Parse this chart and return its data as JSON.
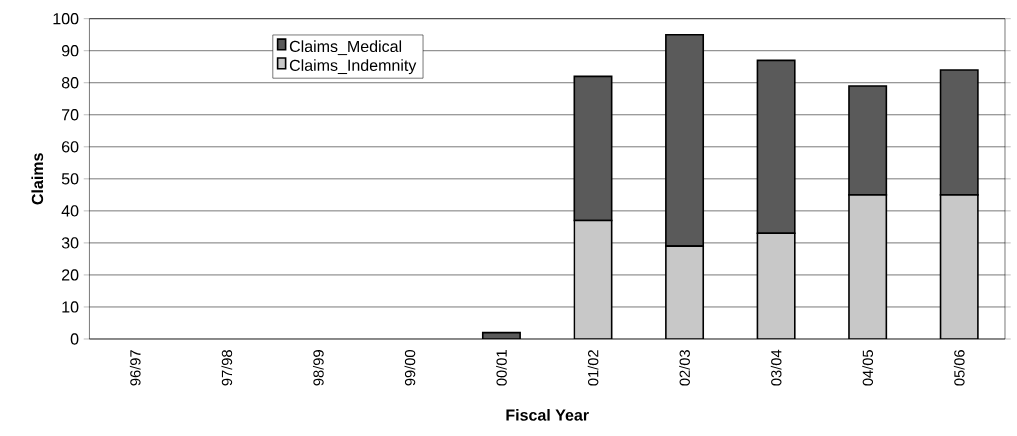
{
  "chart_data": {
    "type": "bar",
    "stacked": true,
    "xlabel": "Fiscal Year",
    "ylabel": "Claims",
    "categories": [
      "96/97",
      "97/98",
      "98/99",
      "99/00",
      "00/01",
      "01/02",
      "02/03",
      "03/04",
      "04/05",
      "05/06"
    ],
    "series": [
      {
        "name": "Claims_Indemnity",
        "color": "#c8c8c8",
        "values": [
          0,
          0,
          0,
          0,
          0,
          37,
          29,
          33,
          45,
          45
        ]
      },
      {
        "name": "Claims_Medical",
        "color": "#5a5a5a",
        "values": [
          0,
          0,
          0,
          0,
          2,
          45,
          66,
          54,
          34,
          39
        ]
      }
    ],
    "ylim": [
      0,
      100
    ],
    "yticks": [
      0,
      10,
      20,
      30,
      40,
      50,
      60,
      70,
      80,
      90,
      100
    ],
    "grid": "y",
    "legend": "top left"
  }
}
